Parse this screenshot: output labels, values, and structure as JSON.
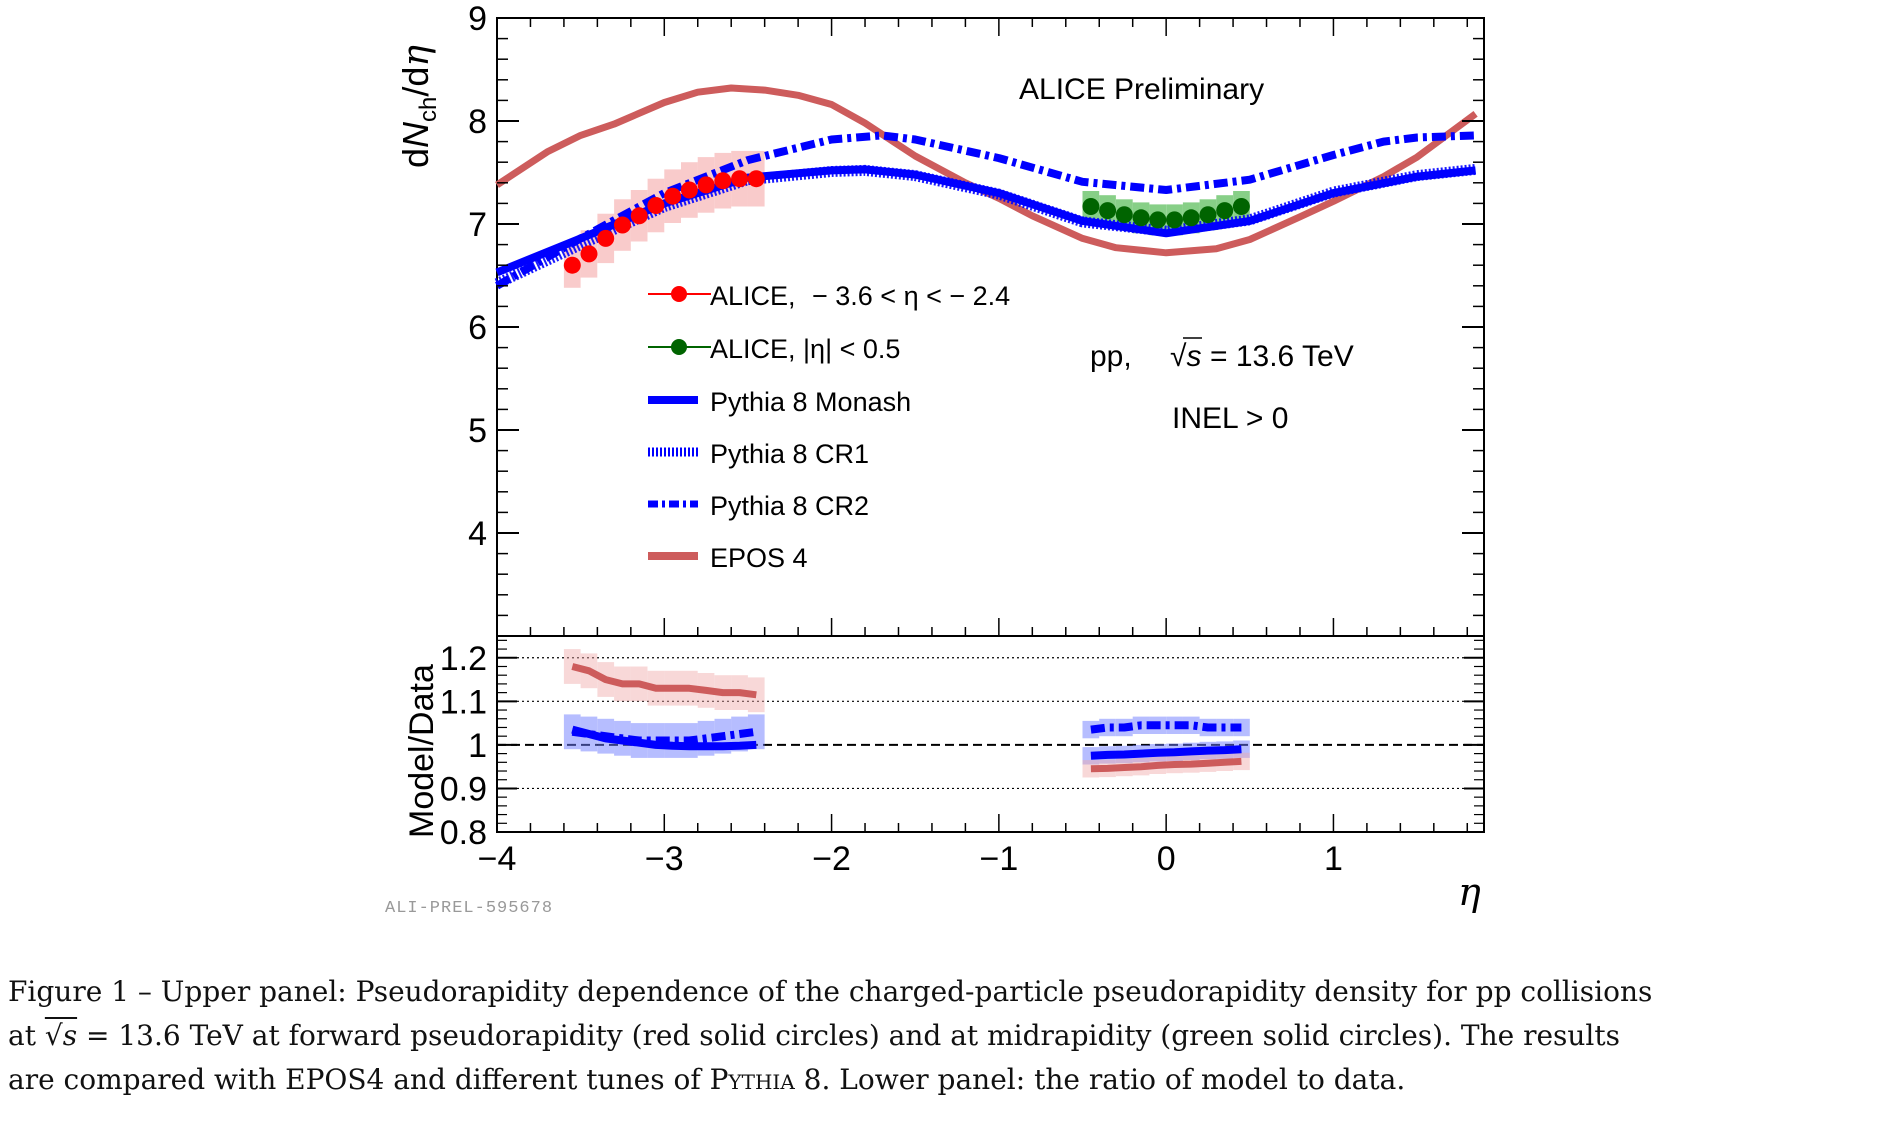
{
  "chart_data": {
    "type": "line",
    "upper_panel": {
      "ylabel_parts": [
        "d",
        "N",
        "ch",
        "/d",
        "η"
      ],
      "ylim": [
        3.0,
        9.0
      ],
      "y_ticks": [
        "4",
        "5",
        "6",
        "7",
        "8",
        "9"
      ],
      "annotations": {
        "preliminary": "ALICE Preliminary",
        "system": "pp,",
        "sqrt_s_symbol": "√s",
        "energy": "= 13.6 TeV",
        "event_class": "INEL > 0"
      },
      "legend": [
        {
          "key": "alice_forward",
          "label_prefix": "ALICE,",
          "label_range": "− 3.6 <  η <  − 2.4",
          "color": "#ff0000",
          "style": "marker"
        },
        {
          "key": "alice_mid",
          "label": "ALICE, |η| < 0.5",
          "color": "#006400",
          "style": "marker"
        },
        {
          "key": "monash",
          "label": "Pythia 8 Monash",
          "color": "#0000ff",
          "style": "solid"
        },
        {
          "key": "cr1",
          "label": "Pythia 8 CR1",
          "color": "#0000ff",
          "style": "dotted"
        },
        {
          "key": "cr2",
          "label": "Pythia 8 CR2",
          "color": "#0000ff",
          "style": "dashdot"
        },
        {
          "key": "epos",
          "label": "EPOS 4",
          "color": "#cd5c5c",
          "style": "solid"
        }
      ],
      "series": [
        {
          "name": "ALICE, −3.6 < η < −2.4",
          "color": "#ff0000",
          "x": [
            -3.55,
            -3.45,
            -3.35,
            -3.25,
            -3.15,
            -3.05,
            -2.95,
            -2.85,
            -2.75,
            -2.65,
            -2.55,
            -2.45
          ],
          "y": [
            6.6,
            6.71,
            6.86,
            6.99,
            7.08,
            7.18,
            7.27,
            7.33,
            7.38,
            7.42,
            7.44,
            7.44
          ],
          "err": [
            0.22,
            0.23,
            0.24,
            0.25,
            0.25,
            0.26,
            0.26,
            0.27,
            0.27,
            0.27,
            0.27,
            0.27
          ]
        },
        {
          "name": "ALICE, |η| < 0.5",
          "color": "#006400",
          "x": [
            -0.45,
            -0.35,
            -0.25,
            -0.15,
            -0.05,
            0.05,
            0.15,
            0.25,
            0.35,
            0.45
          ],
          "y": [
            7.17,
            7.13,
            7.09,
            7.06,
            7.04,
            7.04,
            7.06,
            7.09,
            7.13,
            7.17
          ],
          "err": [
            0.15,
            0.15,
            0.15,
            0.15,
            0.15,
            0.15,
            0.15,
            0.15,
            0.15,
            0.15
          ]
        },
        {
          "name": "Pythia 8 Monash",
          "color": "#0000ff",
          "x": [
            -4.0,
            -3.5,
            -3.0,
            -2.5,
            -2.0,
            -1.8,
            -1.5,
            -1.0,
            -0.5,
            0.0,
            0.5,
            1.0,
            1.5,
            1.85
          ],
          "y": [
            6.53,
            6.86,
            7.2,
            7.45,
            7.52,
            7.53,
            7.48,
            7.3,
            7.03,
            6.91,
            7.03,
            7.3,
            7.46,
            7.52
          ]
        },
        {
          "name": "Pythia 8 CR1",
          "color": "#0000ff",
          "x": [
            -4.0,
            -3.5,
            -3.0,
            -2.5,
            -2.0,
            -1.8,
            -1.5,
            -1.0,
            -0.5,
            0.0,
            0.5,
            1.0,
            1.5,
            1.85
          ],
          "y": [
            6.42,
            6.8,
            7.17,
            7.43,
            7.51,
            7.52,
            7.47,
            7.29,
            7.02,
            6.93,
            7.04,
            7.31,
            7.47,
            7.53
          ]
        },
        {
          "name": "Pythia 8 CR2",
          "color": "#0000ff",
          "x": [
            -4.0,
            -3.5,
            -3.0,
            -2.5,
            -2.0,
            -1.7,
            -1.5,
            -1.0,
            -0.5,
            0.0,
            0.5,
            1.0,
            1.3,
            1.5,
            1.85
          ],
          "y": [
            6.4,
            6.86,
            7.3,
            7.62,
            7.82,
            7.86,
            7.82,
            7.64,
            7.41,
            7.33,
            7.43,
            7.67,
            7.8,
            7.84,
            7.86
          ]
        },
        {
          "name": "EPOS 4",
          "color": "#cd5c5c",
          "x": [
            -4.0,
            -3.7,
            -3.5,
            -3.3,
            -3.0,
            -2.8,
            -2.6,
            -2.4,
            -2.2,
            -2.0,
            -1.8,
            -1.5,
            -1.2,
            -1.0,
            -0.8,
            -0.5,
            -0.3,
            0.0,
            0.3,
            0.5,
            0.8,
            1.0,
            1.3,
            1.5,
            1.85
          ],
          "y": [
            7.38,
            7.7,
            7.86,
            7.97,
            8.18,
            8.28,
            8.32,
            8.3,
            8.25,
            8.16,
            7.98,
            7.66,
            7.4,
            7.25,
            7.08,
            6.86,
            6.77,
            6.72,
            6.76,
            6.85,
            7.07,
            7.22,
            7.46,
            7.65,
            8.07
          ]
        }
      ]
    },
    "lower_panel": {
      "ylabel": "Model/Data",
      "ylim": [
        0.8,
        1.25
      ],
      "y_ticks": [
        "0.8",
        "0.9",
        "1",
        "1.1",
        "1.2"
      ],
      "x_ticks": [
        "−4",
        "−3",
        "−2",
        "−1",
        "0",
        "1"
      ],
      "xlabel": "η",
      "reference_line": 1.0,
      "dotted_lines": [
        0.9,
        1.1,
        1.2
      ],
      "series": [
        {
          "name": "EPOS 4 / Data",
          "color": "#cd5c5c",
          "x": [
            -3.55,
            -3.45,
            -3.35,
            -3.25,
            -3.15,
            -3.05,
            -2.95,
            -2.85,
            -2.75,
            -2.65,
            -2.55,
            -2.45
          ],
          "y": [
            1.18,
            1.17,
            1.15,
            1.14,
            1.14,
            1.13,
            1.13,
            1.13,
            1.125,
            1.12,
            1.12,
            1.115
          ],
          "err": 0.04
        },
        {
          "name": "Pythia 8 CR2 / Data",
          "color": "#0000ff",
          "x": [
            -3.55,
            -3.45,
            -3.35,
            -3.25,
            -3.15,
            -3.05,
            -2.95,
            -2.85,
            -2.75,
            -2.65,
            -2.55,
            -2.45
          ],
          "y": [
            1.03,
            1.025,
            1.02,
            1.015,
            1.01,
            1.01,
            1.01,
            1.01,
            1.015,
            1.02,
            1.025,
            1.03
          ],
          "err": 0.04
        },
        {
          "name": "Pythia 8 Monash / Data",
          "color": "#0000ff",
          "x": [
            -3.55,
            -3.45,
            -3.35,
            -3.25,
            -3.15,
            -3.05,
            -2.95,
            -2.85,
            -2.75,
            -2.65,
            -2.55,
            -2.45
          ],
          "y": [
            1.035,
            1.025,
            1.015,
            1.01,
            1.005,
            1.0,
            0.998,
            0.997,
            0.997,
            0.997,
            0.998,
            1.0
          ]
        },
        {
          "name": "Pythia 8 CR2 / Data (mid)",
          "color": "#0000ff",
          "x": [
            -0.45,
            -0.35,
            -0.25,
            -0.15,
            -0.05,
            0.05,
            0.15,
            0.25,
            0.35,
            0.45
          ],
          "y": [
            1.035,
            1.04,
            1.04,
            1.045,
            1.045,
            1.045,
            1.045,
            1.04,
            1.04,
            1.04
          ],
          "err": 0.02
        },
        {
          "name": "Pythia 8 Monash / Data (mid)",
          "color": "#0000ff",
          "x": [
            -0.45,
            -0.35,
            -0.25,
            -0.15,
            -0.05,
            0.05,
            0.15,
            0.25,
            0.35,
            0.45
          ],
          "y": [
            0.975,
            0.977,
            0.978,
            0.98,
            0.982,
            0.983,
            0.985,
            0.987,
            0.988,
            0.99
          ],
          "err": 0.02
        },
        {
          "name": "EPOS 4 / Data (mid)",
          "color": "#cd5c5c",
          "x": [
            -0.45,
            -0.35,
            -0.25,
            -0.15,
            -0.05,
            0.05,
            0.15,
            0.25,
            0.35,
            0.45
          ],
          "y": [
            0.945,
            0.946,
            0.948,
            0.95,
            0.953,
            0.955,
            0.956,
            0.958,
            0.96,
            0.962
          ],
          "err": 0.02
        }
      ]
    },
    "xlim": [
      -4.0,
      1.9
    ]
  },
  "watermark": "ALI-PREL-595678",
  "caption": {
    "line1": "Figure 1 – Upper panel: Pseudorapidity dependence of the charged-particle pseudorapidity density for pp collisions",
    "line2_prefix": "at ",
    "line2_sqrt": "√s",
    "line2_rest": " = 13.6 TeV at forward pseudorapidity (red solid circles) and at midrapidity (green solid circles).  The results",
    "line3_a": "are compared with EPOS4 and different tunes of ",
    "line3_sc": "Pythia",
    "line3_b": " 8. Lower panel: the ratio of model to data."
  }
}
